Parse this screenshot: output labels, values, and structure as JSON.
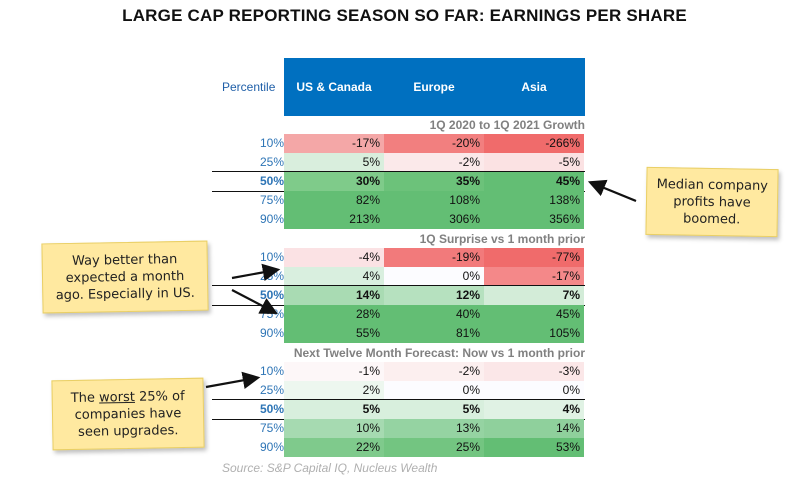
{
  "title": "LARGE CAP REPORTING SEASON SO FAR: EARNINGS PER SHARE",
  "header": {
    "percentile_label": "Percentile",
    "columns": [
      "US & Canada",
      "Europe",
      "Asia"
    ]
  },
  "sections": [
    {
      "title": "1Q 2020 to 1Q 2021 Growth",
      "rows": [
        {
          "pct": "10%",
          "values": [
            "-17%",
            "-20%",
            "-266%"
          ],
          "colors": [
            "#f4a7a7",
            "#f27f7f",
            "#f06b6b"
          ]
        },
        {
          "pct": "25%",
          "values": [
            "5%",
            "-2%",
            "-5%"
          ],
          "colors": [
            "#d9eedd",
            "#fbe9ea",
            "#fbe2e3"
          ]
        },
        {
          "pct": "50%",
          "values": [
            "30%",
            "35%",
            "45%"
          ],
          "colors": [
            "#7fcb8a",
            "#6cc27a",
            "#63be74"
          ]
        },
        {
          "pct": "75%",
          "values": [
            "82%",
            "108%",
            "138%"
          ],
          "colors": [
            "#63be74",
            "#63be74",
            "#63be74"
          ]
        },
        {
          "pct": "90%",
          "values": [
            "213%",
            "306%",
            "356%"
          ],
          "colors": [
            "#63be74",
            "#63be74",
            "#63be74"
          ]
        }
      ]
    },
    {
      "title": "1Q Surprise vs 1 month prior",
      "rows": [
        {
          "pct": "10%",
          "values": [
            "-4%",
            "-19%",
            "-77%"
          ],
          "colors": [
            "#fbe2e4",
            "#f27a7b",
            "#f06b6b"
          ]
        },
        {
          "pct": "25%",
          "values": [
            "4%",
            "0%",
            "-17%"
          ],
          "colors": [
            "#d9efdf",
            "#fcfcff",
            "#f48889"
          ]
        },
        {
          "pct": "50%",
          "values": [
            "14%",
            "12%",
            "7%"
          ],
          "colors": [
            "#a9dbb3",
            "#b6e1bf",
            "#d3ecd8"
          ]
        },
        {
          "pct": "75%",
          "values": [
            "28%",
            "40%",
            "45%"
          ],
          "colors": [
            "#63be74",
            "#63be74",
            "#63be74"
          ]
        },
        {
          "pct": "90%",
          "values": [
            "55%",
            "81%",
            "105%"
          ],
          "colors": [
            "#63be74",
            "#63be74",
            "#63be74"
          ]
        }
      ]
    },
    {
      "title": "Next Twelve Month Forecast: Now vs 1 month prior",
      "rows": [
        {
          "pct": "10%",
          "values": [
            "-1%",
            "-2%",
            "-3%"
          ],
          "colors": [
            "#fdf7f8",
            "#fcefef",
            "#fbe7e8"
          ]
        },
        {
          "pct": "25%",
          "values": [
            "2%",
            "0%",
            "0%"
          ],
          "colors": [
            "#edf7ef",
            "#fcfcff",
            "#fcfcff"
          ]
        },
        {
          "pct": "50%",
          "values": [
            "5%",
            "5%",
            "4%"
          ],
          "colors": [
            "#d8efdd",
            "#d8efdd",
            "#e0f2e4"
          ]
        },
        {
          "pct": "75%",
          "values": [
            "10%",
            "13%",
            "14%"
          ],
          "colors": [
            "#a6dab1",
            "#95d3a2",
            "#8fd09c"
          ]
        },
        {
          "pct": "90%",
          "values": [
            "22%",
            "25%",
            "53%"
          ],
          "colors": [
            "#7fca8c",
            "#73c581",
            "#63be74"
          ]
        }
      ]
    }
  ],
  "notes": {
    "median": [
      "Median company",
      "profits have",
      "boomed."
    ],
    "surprise": [
      "Way better than",
      "expected a month",
      "ago. Especially in US."
    ],
    "worst_pre": "The ",
    "worst_u": "worst",
    "worst_post": " 25% of",
    "worst_l2": "companies have",
    "worst_l3": "seen upgrades."
  },
  "source": "Source: S&P Capital IQ, Nucleus Wealth"
}
